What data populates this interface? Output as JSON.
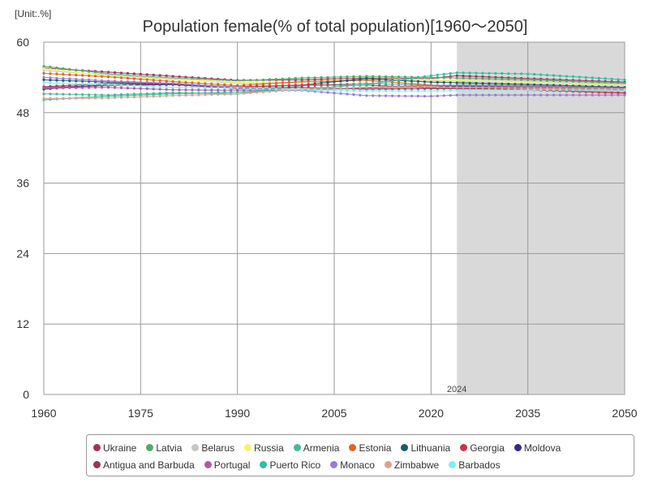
{
  "unit_label": "[Unit:.%]",
  "chart_data": {
    "type": "line",
    "title": "Population female(% of total population)[1960～2050]",
    "xlabel": "",
    "ylabel": "",
    "xlim": [
      1960,
      2050
    ],
    "ylim": [
      0,
      60
    ],
    "x_ticks": [
      "1960",
      "1975",
      "1990",
      "2005",
      "2020",
      "2035",
      "2050"
    ],
    "y_ticks": [
      "0",
      "12",
      "24",
      "36",
      "48",
      "60"
    ],
    "grid": true,
    "legend_position": "bottom",
    "annotation": "2024",
    "forecast_region": [
      2024,
      2050
    ],
    "series": [
      {
        "name": "Ukraine",
        "color": "#a0305a",
        "points": [
          [
            1960,
            55.6
          ],
          [
            1970,
            54.9
          ],
          [
            1980,
            54.2
          ],
          [
            1990,
            53.5
          ],
          [
            2000,
            53.6
          ],
          [
            2010,
            53.9
          ],
          [
            2020,
            53.8
          ],
          [
            2024,
            54.3
          ],
          [
            2035,
            53.8
          ],
          [
            2050,
            53.2
          ]
        ]
      },
      {
        "name": "Latvia",
        "color": "#55a868",
        "points": [
          [
            1960,
            55.9
          ],
          [
            1970,
            54.6
          ],
          [
            1980,
            53.9
          ],
          [
            1990,
            53.4
          ],
          [
            2000,
            53.9
          ],
          [
            2010,
            54.2
          ],
          [
            2020,
            54.0
          ],
          [
            2024,
            53.9
          ],
          [
            2035,
            53.6
          ],
          [
            2050,
            53.0
          ]
        ]
      },
      {
        "name": "Belarus",
        "color": "#c6c6c6",
        "points": [
          [
            1960,
            55.2
          ],
          [
            1970,
            54.4
          ],
          [
            1980,
            53.7
          ],
          [
            1990,
            53.0
          ],
          [
            2000,
            53.1
          ],
          [
            2010,
            53.6
          ],
          [
            2020,
            53.4
          ],
          [
            2024,
            53.4
          ],
          [
            2035,
            53.1
          ],
          [
            2050,
            52.7
          ]
        ]
      },
      {
        "name": "Russia",
        "color": "#f4f46a",
        "points": [
          [
            1960,
            55.5
          ],
          [
            1970,
            54.2
          ],
          [
            1980,
            53.6
          ],
          [
            1990,
            53.2
          ],
          [
            2000,
            53.2
          ],
          [
            2010,
            53.7
          ],
          [
            2020,
            53.6
          ],
          [
            2024,
            53.5
          ],
          [
            2035,
            53.1
          ],
          [
            2050,
            52.6
          ]
        ]
      },
      {
        "name": "Armenia",
        "color": "#45b8a0",
        "points": [
          [
            1960,
            51.2
          ],
          [
            1970,
            51.0
          ],
          [
            1980,
            51.4
          ],
          [
            1990,
            51.2
          ],
          [
            2000,
            52.6
          ],
          [
            2010,
            53.0
          ],
          [
            2020,
            52.6
          ],
          [
            2024,
            52.7
          ],
          [
            2035,
            52.6
          ],
          [
            2050,
            52.3
          ]
        ]
      },
      {
        "name": "Estonia",
        "color": "#d9652b",
        "points": [
          [
            1960,
            54.7
          ],
          [
            1970,
            54.1
          ],
          [
            1980,
            53.3
          ],
          [
            1990,
            52.6
          ],
          [
            2000,
            53.3
          ],
          [
            2010,
            53.5
          ],
          [
            2020,
            52.7
          ],
          [
            2024,
            52.3
          ],
          [
            2035,
            51.9
          ],
          [
            2050,
            51.3
          ]
        ]
      },
      {
        "name": "Lithuania",
        "color": "#1c5a6e",
        "points": [
          [
            1960,
            53.6
          ],
          [
            1970,
            53.2
          ],
          [
            1980,
            52.9
          ],
          [
            1990,
            52.3
          ],
          [
            2000,
            52.7
          ],
          [
            2010,
            53.8
          ],
          [
            2020,
            53.2
          ],
          [
            2024,
            53.1
          ],
          [
            2035,
            52.8
          ],
          [
            2050,
            52.3
          ]
        ]
      },
      {
        "name": "Georgia",
        "color": "#d42f4e",
        "points": [
          [
            1960,
            52.3
          ],
          [
            1970,
            52.6
          ],
          [
            1980,
            52.8
          ],
          [
            1990,
            52.4
          ],
          [
            2000,
            52.7
          ],
          [
            2010,
            52.7
          ],
          [
            2020,
            52.2
          ],
          [
            2024,
            52.2
          ],
          [
            2035,
            51.9
          ],
          [
            2050,
            51.4
          ]
        ]
      },
      {
        "name": "Moldova",
        "color": "#3b2a78",
        "points": [
          [
            1960,
            52.0
          ],
          [
            1970,
            52.8
          ],
          [
            1980,
            52.8
          ],
          [
            1990,
            52.1
          ],
          [
            2000,
            51.9
          ],
          [
            2010,
            52.2
          ],
          [
            2020,
            52.4
          ],
          [
            2024,
            52.5
          ],
          [
            2035,
            52.3
          ],
          [
            2050,
            52.0
          ]
        ]
      },
      {
        "name": "Antigua and Barbuda",
        "color": "#8e3a50",
        "points": [
          [
            1960,
            52.4
          ],
          [
            1970,
            53.0
          ],
          [
            1980,
            52.9
          ],
          [
            1990,
            52.1
          ],
          [
            2000,
            52.3
          ],
          [
            2010,
            52.0
          ],
          [
            2020,
            52.1
          ],
          [
            2024,
            52.1
          ],
          [
            2035,
            52.0
          ],
          [
            2050,
            51.8
          ]
        ]
      },
      {
        "name": "Portugal",
        "color": "#b05aa3",
        "points": [
          [
            1960,
            52.2
          ],
          [
            1970,
            52.3
          ],
          [
            1980,
            51.9
          ],
          [
            1990,
            51.8
          ],
          [
            2000,
            51.8
          ],
          [
            2010,
            52.3
          ],
          [
            2020,
            52.6
          ],
          [
            2024,
            52.6
          ],
          [
            2035,
            52.5
          ],
          [
            2050,
            52.1
          ]
        ]
      },
      {
        "name": "Puerto Rico",
        "color": "#2ec0a0",
        "points": [
          [
            1960,
            50.2
          ],
          [
            1970,
            50.8
          ],
          [
            1980,
            51.2
          ],
          [
            1990,
            51.5
          ],
          [
            2000,
            52.0
          ],
          [
            2010,
            52.8
          ],
          [
            2020,
            54.3
          ],
          [
            2024,
            54.8
          ],
          [
            2035,
            54.6
          ],
          [
            2050,
            53.6
          ]
        ]
      },
      {
        "name": "Monaco",
        "color": "#9a7ad6",
        "points": [
          [
            1960,
            54.0
          ],
          [
            1970,
            53.4
          ],
          [
            1980,
            53.0
          ],
          [
            1990,
            52.3
          ],
          [
            2000,
            51.8
          ],
          [
            2010,
            50.9
          ],
          [
            2020,
            50.8
          ],
          [
            2024,
            51.0
          ],
          [
            2035,
            51.0
          ],
          [
            2050,
            51.0
          ]
        ]
      },
      {
        "name": "Zimbabwe",
        "color": "#e0a090",
        "points": [
          [
            1960,
            50.4
          ],
          [
            1970,
            50.5
          ],
          [
            1980,
            50.9
          ],
          [
            1990,
            51.2
          ],
          [
            2000,
            52.0
          ],
          [
            2010,
            52.3
          ],
          [
            2020,
            52.4
          ],
          [
            2024,
            52.3
          ],
          [
            2035,
            52.2
          ],
          [
            2050,
            52.0
          ]
        ]
      },
      {
        "name": "Barbados",
        "color": "#80eef0",
        "points": [
          [
            1960,
            53.1
          ],
          [
            1970,
            52.8
          ],
          [
            1980,
            52.3
          ],
          [
            1990,
            52.2
          ],
          [
            2000,
            51.9
          ],
          [
            2010,
            51.7
          ],
          [
            2020,
            51.7
          ],
          [
            2024,
            51.8
          ],
          [
            2035,
            51.9
          ],
          [
            2050,
            51.8
          ]
        ]
      }
    ]
  }
}
